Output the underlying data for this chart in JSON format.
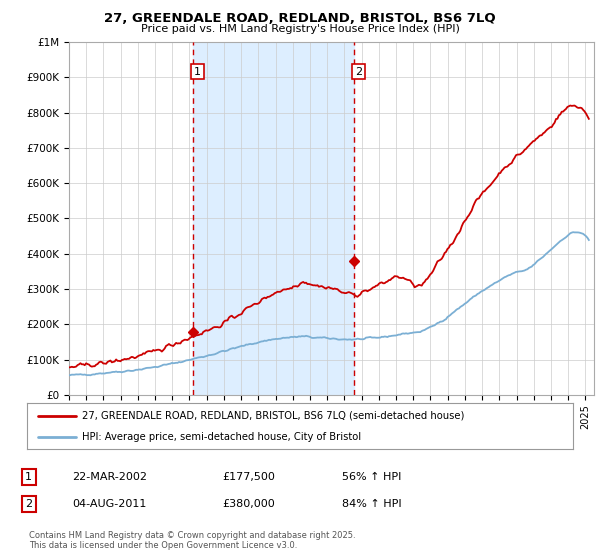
{
  "title1": "27, GREENDALE ROAD, REDLAND, BRISTOL, BS6 7LQ",
  "title2": "Price paid vs. HM Land Registry's House Price Index (HPI)",
  "ylim": [
    0,
    1000000
  ],
  "yticks": [
    0,
    100000,
    200000,
    300000,
    400000,
    500000,
    600000,
    700000,
    800000,
    900000,
    1000000
  ],
  "ytick_labels": [
    "£0",
    "£100K",
    "£200K",
    "£300K",
    "£400K",
    "£500K",
    "£600K",
    "£700K",
    "£800K",
    "£900K",
    "£1M"
  ],
  "xlim_start": 1995.0,
  "xlim_end": 2025.5,
  "red_line_color": "#cc0000",
  "blue_line_color": "#7bafd4",
  "shade_color": "#ddeeff",
  "vline_color": "#cc0000",
  "purchase1_x": 2002.22,
  "purchase1_y": 177500,
  "purchase2_x": 2011.58,
  "purchase2_y": 380000,
  "legend1": "27, GREENDALE ROAD, REDLAND, BRISTOL, BS6 7LQ (semi-detached house)",
  "legend2": "HPI: Average price, semi-detached house, City of Bristol",
  "table_row1": [
    "1",
    "22-MAR-2002",
    "£177,500",
    "56% ↑ HPI"
  ],
  "table_row2": [
    "2",
    "04-AUG-2011",
    "£380,000",
    "84% ↑ HPI"
  ],
  "footnote": "Contains HM Land Registry data © Crown copyright and database right 2025.\nThis data is licensed under the Open Government Licence v3.0.",
  "fig_bg_color": "#ffffff",
  "plot_bg_color": "#ffffff",
  "grid_color": "#cccccc",
  "hpi_data": [
    55000,
    57000,
    59000,
    62000,
    65000,
    68000,
    72000,
    77000,
    83000,
    90000,
    97000,
    105000,
    113000,
    122000,
    131000,
    140000,
    148000,
    155000,
    160000,
    163000,
    165000,
    162000,
    160000,
    158000,
    157000,
    158000,
    161000,
    165000,
    170000,
    175000,
    180000,
    195000,
    215000,
    240000,
    265000,
    290000,
    310000,
    330000,
    345000,
    355000,
    380000,
    410000,
    440000,
    460000,
    450000
  ],
  "prop_data": [
    78000,
    82000,
    86000,
    90000,
    96000,
    103000,
    110000,
    120000,
    132000,
    145000,
    158000,
    172000,
    185000,
    200000,
    220000,
    240000,
    260000,
    280000,
    295000,
    305000,
    320000,
    310000,
    305000,
    295000,
    285000,
    290000,
    305000,
    320000,
    335000,
    320000,
    310000,
    350000,
    400000,
    450000,
    510000,
    560000,
    600000,
    640000,
    670000,
    700000,
    730000,
    760000,
    800000,
    820000,
    800000
  ]
}
